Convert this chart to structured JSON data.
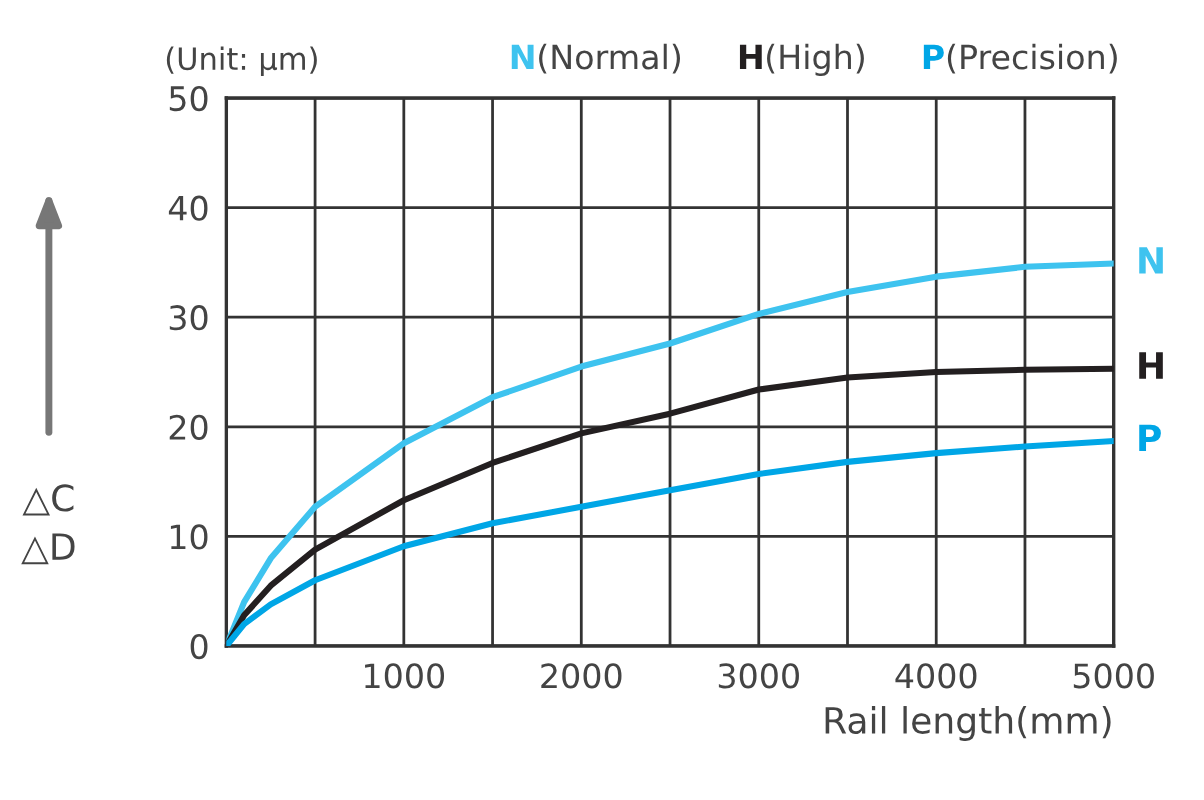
{
  "chart_data": {
    "type": "line",
    "xlabel": "Rail length(mm)",
    "ylabel": "△C\n△D",
    "annotations": [
      "(Unit: μm)",
      "(Normal)",
      "(High)",
      "(Precision)"
    ],
    "x": [
      0,
      100,
      250,
      500,
      1000,
      1500,
      2000,
      2500,
      3000,
      3500,
      4000,
      4500,
      5000
    ],
    "series": [
      {
        "name": "N",
        "color": "#3ec3ef",
        "values": [
          0,
          4,
          8,
          12.7,
          18.5,
          22.7,
          25.5,
          27.6,
          30.3,
          32.3,
          33.7,
          34.6,
          34.9
        ]
      },
      {
        "name": "H",
        "color": "#231f20",
        "values": [
          0,
          2.8,
          5.5,
          8.8,
          13.3,
          16.7,
          19.4,
          21.2,
          23.4,
          24.5,
          25,
          25.2,
          25.3
        ]
      },
      {
        "name": "P",
        "color": "#00a6e6",
        "values": [
          0,
          2,
          3.8,
          6,
          9.1,
          11.2,
          12.7,
          14.2,
          15.7,
          16.8,
          17.6,
          18.2,
          18.7
        ]
      }
    ],
    "xlim": [
      0,
      5000
    ],
    "ylim": [
      0,
      50
    ],
    "xticks": [
      {
        "value": 0,
        "label": null
      },
      {
        "value": 500,
        "label": null
      },
      1000,
      {
        "value": 1500,
        "label": null
      },
      2000,
      {
        "value": 2500,
        "label": null
      },
      3000,
      {
        "value": 3500,
        "label": null
      },
      4000,
      {
        "value": 4500,
        "label": null
      },
      5000
    ],
    "yticks": [
      0,
      10,
      20,
      30,
      40,
      50
    ],
    "grid": true,
    "marker": "none",
    "line_style": "solid"
  }
}
